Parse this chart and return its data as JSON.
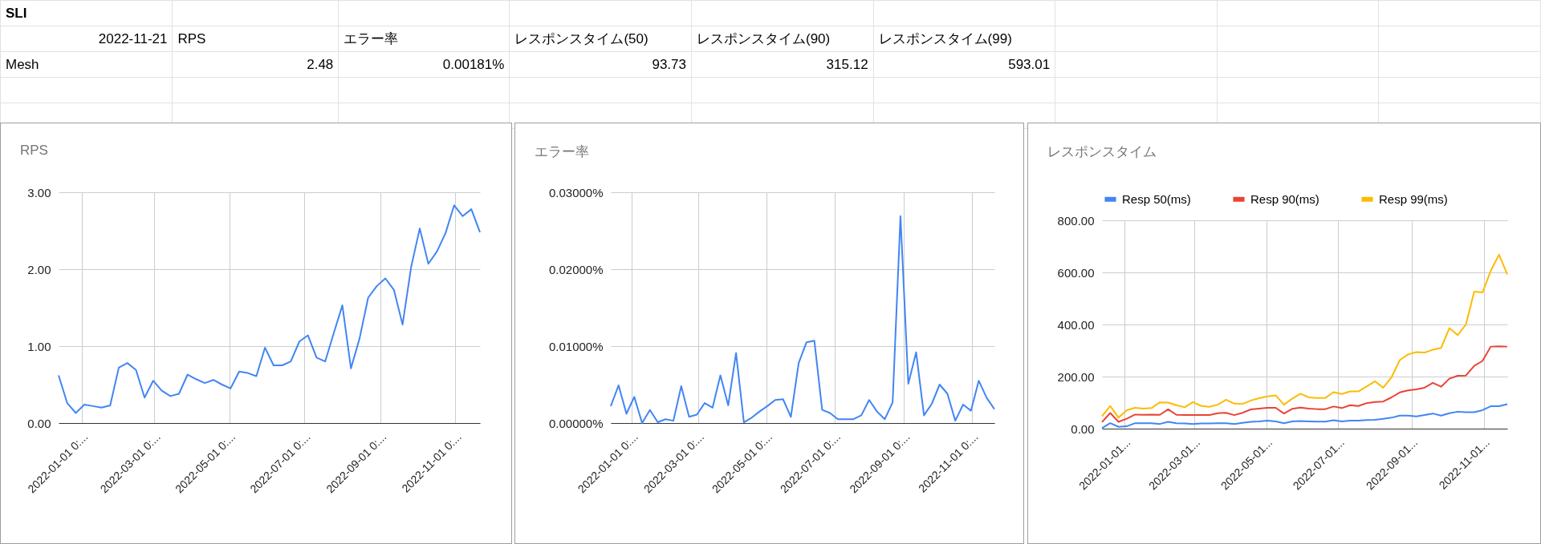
{
  "chart_data": [
    {
      "type": "other",
      "title": "SLI",
      "categories": [
        "2022-11-21",
        "RPS",
        "エラー率",
        "レスポンスタイム(50)",
        "レスポンスタイム(90)",
        "レスポンスタイム(99)"
      ],
      "cell_labels": [
        [
          "Mesh",
          "2.48",
          "0.00181%",
          "93.73",
          "315.12",
          "593.01"
        ]
      ]
    },
    {
      "type": "line",
      "title": "RPS",
      "color": "#4285f4",
      "x": [
        "2021-12-13",
        "2021-12-20",
        "2021-12-27",
        "2022-01-03",
        "2022-01-10",
        "2022-01-17",
        "2022-01-24",
        "2022-01-31",
        "2022-02-07",
        "2022-02-14",
        "2022-02-21",
        "2022-02-28",
        "2022-03-07",
        "2022-03-14",
        "2022-03-21",
        "2022-03-28",
        "2022-04-04",
        "2022-04-11",
        "2022-04-18",
        "2022-04-25",
        "2022-05-02",
        "2022-05-09",
        "2022-05-16",
        "2022-05-23",
        "2022-05-30",
        "2022-06-06",
        "2022-06-13",
        "2022-06-20",
        "2022-06-27",
        "2022-07-04",
        "2022-07-11",
        "2022-07-18",
        "2022-07-25",
        "2022-08-01",
        "2022-08-08",
        "2022-08-15",
        "2022-08-22",
        "2022-08-29",
        "2022-09-05",
        "2022-09-12",
        "2022-09-19",
        "2022-09-26",
        "2022-10-03",
        "2022-10-10",
        "2022-10-17",
        "2022-10-24",
        "2022-10-31",
        "2022-11-07",
        "2022-11-14",
        "2022-11-21"
      ],
      "values": [
        0.62,
        0.26,
        0.13,
        0.24,
        0.22,
        0.2,
        0.23,
        0.72,
        0.78,
        0.69,
        0.33,
        0.55,
        0.42,
        0.35,
        0.38,
        0.63,
        0.57,
        0.52,
        0.56,
        0.5,
        0.45,
        0.67,
        0.65,
        0.61,
        0.98,
        0.75,
        0.75,
        0.8,
        1.06,
        1.14,
        0.85,
        0.8,
        1.17,
        1.53,
        0.71,
        1.1,
        1.63,
        1.78,
        1.88,
        1.73,
        1.28,
        2.03,
        2.53,
        2.07,
        2.23,
        2.47,
        2.83,
        2.69,
        2.78,
        2.48
      ],
      "xlim": [
        "2021-12-13",
        "2022-11-21"
      ],
      "xticks": [
        {
          "value": "2022-01-01",
          "label": "2022-01-01 0:..."
        },
        {
          "value": "2022-03-01",
          "label": "2022-03-01 0:..."
        },
        {
          "value": "2022-05-01",
          "label": "2022-05-01 0:..."
        },
        {
          "value": "2022-07-01",
          "label": "2022-07-01 0:..."
        },
        {
          "value": "2022-09-01",
          "label": "2022-09-01 0:..."
        },
        {
          "value": "2022-11-01",
          "label": "2022-11-01 0:..."
        }
      ],
      "ylim": [
        0,
        3
      ],
      "yticks": [
        {
          "value": 0,
          "label": "0.00"
        },
        {
          "value": 1,
          "label": "1.00"
        },
        {
          "value": 2,
          "label": "2.00"
        },
        {
          "value": 3,
          "label": "3.00"
        }
      ],
      "grid": true
    },
    {
      "type": "line",
      "title": "エラー率",
      "color": "#4285f4",
      "x": [
        "2021-12-13",
        "2021-12-20",
        "2021-12-27",
        "2022-01-03",
        "2022-01-10",
        "2022-01-17",
        "2022-01-24",
        "2022-01-31",
        "2022-02-07",
        "2022-02-14",
        "2022-02-21",
        "2022-02-28",
        "2022-03-07",
        "2022-03-14",
        "2022-03-21",
        "2022-03-28",
        "2022-04-04",
        "2022-04-11",
        "2022-04-18",
        "2022-04-25",
        "2022-05-02",
        "2022-05-09",
        "2022-05-16",
        "2022-05-23",
        "2022-05-30",
        "2022-06-06",
        "2022-06-13",
        "2022-06-20",
        "2022-06-27",
        "2022-07-04",
        "2022-07-11",
        "2022-07-18",
        "2022-07-25",
        "2022-08-01",
        "2022-08-08",
        "2022-08-15",
        "2022-08-22",
        "2022-08-29",
        "2022-09-05",
        "2022-09-12",
        "2022-09-19",
        "2022-09-26",
        "2022-10-03",
        "2022-10-10",
        "2022-10-17",
        "2022-10-24",
        "2022-10-31",
        "2022-11-07",
        "2022-11-14",
        "2022-11-21"
      ],
      "values": [
        0.0022,
        0.0049,
        0.0012,
        0.0034,
        0.0,
        0.0017,
        0.0001,
        0.0005,
        0.0003,
        0.0048,
        0.0008,
        0.0011,
        0.0026,
        0.002,
        0.0062,
        0.0023,
        0.0091,
        0.0001,
        0.0007,
        0.0015,
        0.0022,
        0.003,
        0.0031,
        0.0008,
        0.0078,
        0.0105,
        0.0107,
        0.0017,
        0.0013,
        0.0005,
        0.0005,
        0.0005,
        0.001,
        0.003,
        0.0015,
        0.0005,
        0.0027,
        0.0269,
        0.0051,
        0.0092,
        0.001,
        0.0025,
        0.005,
        0.0038,
        0.0003,
        0.0024,
        0.0016,
        0.0055,
        0.0033,
        0.0018
      ],
      "xlim": [
        "2021-12-13",
        "2022-11-21"
      ],
      "xticks": [
        {
          "value": "2022-01-01",
          "label": "2022-01-01 0:..."
        },
        {
          "value": "2022-03-01",
          "label": "2022-03-01 0:..."
        },
        {
          "value": "2022-05-01",
          "label": "2022-05-01 0:..."
        },
        {
          "value": "2022-07-01",
          "label": "2022-07-01 0:..."
        },
        {
          "value": "2022-09-01",
          "label": "2022-09-01 0:..."
        },
        {
          "value": "2022-11-01",
          "label": "2022-11-01 0:..."
        }
      ],
      "ylim": [
        0,
        0.03
      ],
      "yticks": [
        {
          "value": 0,
          "label": "0.00000%"
        },
        {
          "value": 0.01,
          "label": "0.01000%"
        },
        {
          "value": 0.02,
          "label": "0.02000%"
        },
        {
          "value": 0.03,
          "label": "0.03000%"
        }
      ],
      "grid": true
    },
    {
      "type": "line",
      "title": "レスポンスタイム",
      "x": [
        "2021-12-13",
        "2021-12-20",
        "2021-12-27",
        "2022-01-03",
        "2022-01-10",
        "2022-01-17",
        "2022-01-24",
        "2022-01-31",
        "2022-02-07",
        "2022-02-14",
        "2022-02-21",
        "2022-02-28",
        "2022-03-07",
        "2022-03-14",
        "2022-03-21",
        "2022-03-28",
        "2022-04-04",
        "2022-04-11",
        "2022-04-18",
        "2022-04-25",
        "2022-05-02",
        "2022-05-09",
        "2022-05-16",
        "2022-05-23",
        "2022-05-30",
        "2022-06-06",
        "2022-06-13",
        "2022-06-20",
        "2022-06-27",
        "2022-07-04",
        "2022-07-11",
        "2022-07-18",
        "2022-07-25",
        "2022-08-01",
        "2022-08-08",
        "2022-08-15",
        "2022-08-22",
        "2022-08-29",
        "2022-09-05",
        "2022-09-12",
        "2022-09-19",
        "2022-09-26",
        "2022-10-03",
        "2022-10-10",
        "2022-10-17",
        "2022-10-24",
        "2022-10-31",
        "2022-11-07",
        "2022-11-14",
        "2022-11-21"
      ],
      "series": [
        {
          "name": "Resp 50(ms)",
          "color": "#4285f4",
          "values": [
            2,
            21,
            7,
            9,
            21,
            21,
            21,
            18,
            26,
            21,
            20,
            18,
            20,
            20,
            21,
            21,
            18,
            22,
            26,
            28,
            31,
            28,
            21,
            28,
            29,
            28,
            27,
            27,
            32,
            28,
            31,
            31,
            33,
            34,
            38,
            42,
            50,
            50,
            47,
            52,
            58,
            50,
            59,
            65,
            63,
            63,
            71,
            86,
            86,
            94
          ]
        },
        {
          "name": "Resp 90(ms)",
          "color": "#ea4335",
          "values": [
            25,
            60,
            26,
            38,
            54,
            53,
            54,
            53,
            74,
            53,
            52,
            52,
            52,
            52,
            59,
            61,
            52,
            61,
            74,
            77,
            80,
            80,
            58,
            76,
            81,
            77,
            75,
            75,
            85,
            79,
            90,
            87,
            98,
            102,
            104,
            120,
            139,
            147,
            151,
            157,
            176,
            161,
            192,
            203,
            204,
            241,
            260,
            315,
            316,
            315
          ]
        },
        {
          "name": "Resp 99(ms)",
          "color": "#fbbc04",
          "values": [
            47,
            87,
            42,
            71,
            80,
            77,
            79,
            101,
            100,
            90,
            82,
            102,
            87,
            84,
            92,
            111,
            96,
            95,
            108,
            117,
            124,
            128,
            92,
            115,
            134,
            120,
            118,
            118,
            140,
            133,
            143,
            143,
            162,
            182,
            157,
            197,
            263,
            285,
            294,
            292,
            303,
            310,
            386,
            359,
            400,
            526,
            523,
            606,
            668,
            593
          ]
        }
      ],
      "xlim": [
        "2021-12-13",
        "2022-11-21"
      ],
      "xticks": [
        {
          "value": "2022-01-01",
          "label": "2022-01-01..."
        },
        {
          "value": "2022-03-01",
          "label": "2022-03-01..."
        },
        {
          "value": "2022-05-01",
          "label": "2022-05-01..."
        },
        {
          "value": "2022-07-01",
          "label": "2022-07-01..."
        },
        {
          "value": "2022-09-01",
          "label": "2022-09-01..."
        },
        {
          "value": "2022-11-01",
          "label": "2022-11-01..."
        }
      ],
      "ylim": [
        0,
        800
      ],
      "yticks": [
        {
          "value": 0,
          "label": "0.00"
        },
        {
          "value": 200,
          "label": "200.00"
        },
        {
          "value": 400,
          "label": "400.00"
        },
        {
          "value": 600,
          "label": "600.00"
        },
        {
          "value": 800,
          "label": "800.00"
        }
      ],
      "grid": true,
      "legend": "top"
    }
  ]
}
